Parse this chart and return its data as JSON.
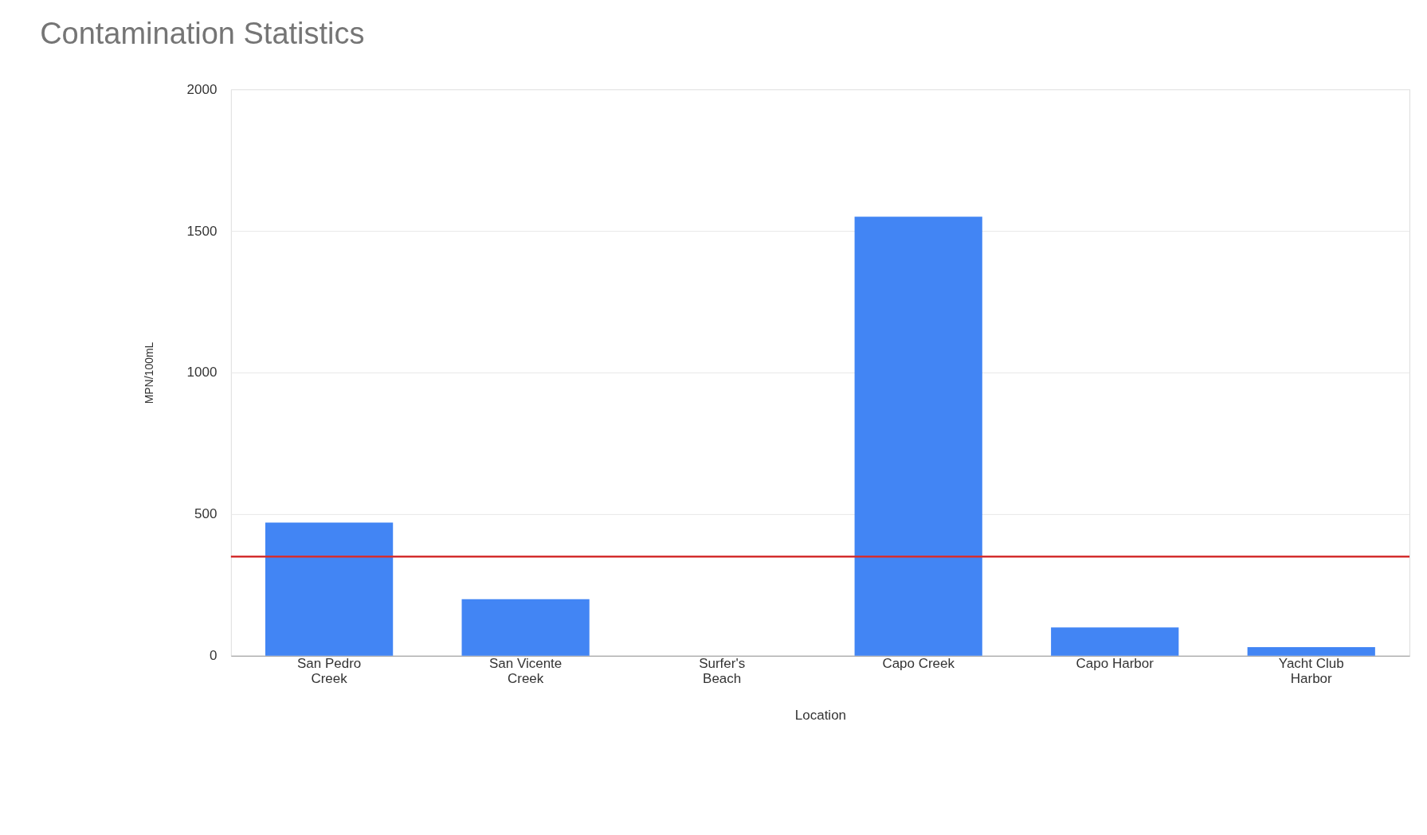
{
  "chart_data": {
    "type": "bar",
    "title": "Contamination Statistics",
    "xlabel": "Location",
    "ylabel": "MPN/100mL",
    "categories": [
      "San Pedro Creek",
      "San Vicente Creek",
      "Surfer's Beach",
      "Capo Creek",
      "Capo Harbor",
      "Yacht Club Harbor"
    ],
    "values": [
      470,
      200,
      0,
      1550,
      100,
      30
    ],
    "color": "#4285f4",
    "ylim": [
      0,
      2000
    ],
    "yticks": [
      0,
      500,
      1000,
      1500,
      2000
    ],
    "grid": "y",
    "ref_lines": [
      {
        "axis": "y",
        "value": 350,
        "color": "#d32f2f"
      }
    ]
  }
}
